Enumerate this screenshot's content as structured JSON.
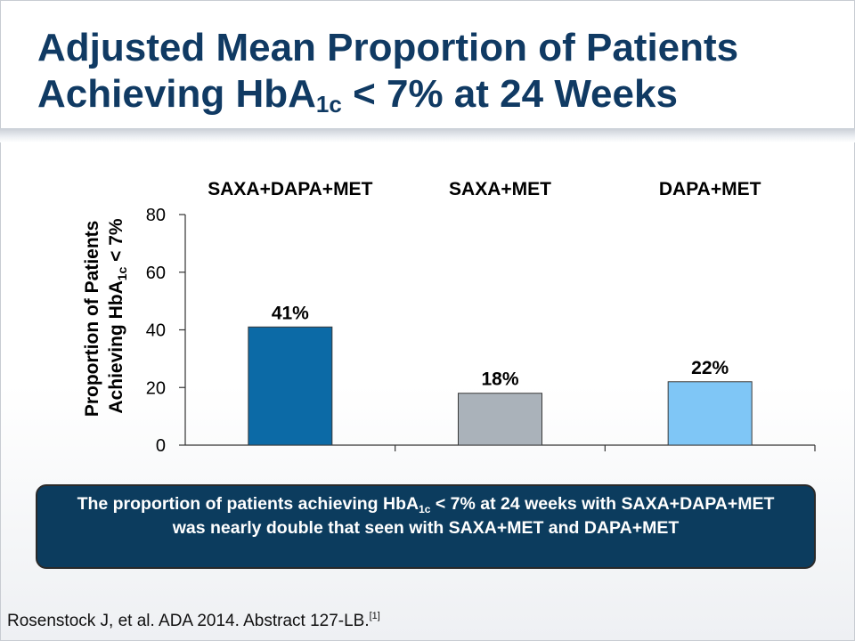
{
  "title": {
    "line1": "Adjusted Mean Proportion of Patients",
    "line2_pre": "Achieving HbA",
    "line2_sub": "1c",
    "line2_post": " < 7% at 24 Weeks"
  },
  "chart_data": {
    "type": "bar",
    "categories": [
      "SAXA+DAPA+MET",
      "SAXA+MET",
      "DAPA+MET"
    ],
    "values": [
      41,
      18,
      22
    ],
    "data_labels": [
      "41%",
      "18%",
      "22%"
    ],
    "colors": [
      "#0c6aa6",
      "#aab2ba",
      "#7fc6f6"
    ],
    "ylabel_line1": "Proportion of Patients",
    "ylabel_line2_pre": "Achieving HbA",
    "ylabel_line2_sub": "1c",
    "ylabel_line2_post": " < 7%",
    "ylim": [
      0,
      80
    ],
    "yticks": [
      0,
      20,
      40,
      60,
      80
    ],
    "category_label_position": "top",
    "grid": false
  },
  "callout": {
    "pre": "The proportion of patients achieving HbA",
    "sub": "1c",
    "post": " < 7% at 24 weeks with SAXA+DAPA+MET was nearly double that seen with SAXA+MET and DAPA+MET"
  },
  "reference": {
    "text": "Rosenstock J, et al. ADA 2014. Abstract 127-LB.",
    "superscript": "[1]"
  }
}
